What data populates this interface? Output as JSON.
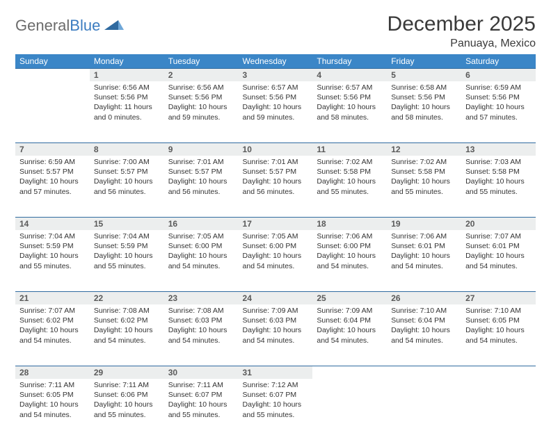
{
  "brand": {
    "name1": "General",
    "name2": "Blue"
  },
  "title": "December 2025",
  "location": "Panuaya, Mexico",
  "colors": {
    "header_bg": "#3b86c7",
    "header_text": "#ffffff",
    "daynum_bg": "#eceeee",
    "daynum_border": "#2f6aa0",
    "text": "#333333",
    "brand_gray": "#6b6b6b",
    "brand_blue": "#3b7cc0"
  },
  "weekdays": [
    "Sunday",
    "Monday",
    "Tuesday",
    "Wednesday",
    "Thursday",
    "Friday",
    "Saturday"
  ],
  "weeks": [
    [
      null,
      {
        "n": "1",
        "sr": "6:56 AM",
        "ss": "5:56 PM",
        "dl": "11 hours and 0 minutes."
      },
      {
        "n": "2",
        "sr": "6:56 AM",
        "ss": "5:56 PM",
        "dl": "10 hours and 59 minutes."
      },
      {
        "n": "3",
        "sr": "6:57 AM",
        "ss": "5:56 PM",
        "dl": "10 hours and 59 minutes."
      },
      {
        "n": "4",
        "sr": "6:57 AM",
        "ss": "5:56 PM",
        "dl": "10 hours and 58 minutes."
      },
      {
        "n": "5",
        "sr": "6:58 AM",
        "ss": "5:56 PM",
        "dl": "10 hours and 58 minutes."
      },
      {
        "n": "6",
        "sr": "6:59 AM",
        "ss": "5:56 PM",
        "dl": "10 hours and 57 minutes."
      }
    ],
    [
      {
        "n": "7",
        "sr": "6:59 AM",
        "ss": "5:57 PM",
        "dl": "10 hours and 57 minutes."
      },
      {
        "n": "8",
        "sr": "7:00 AM",
        "ss": "5:57 PM",
        "dl": "10 hours and 56 minutes."
      },
      {
        "n": "9",
        "sr": "7:01 AM",
        "ss": "5:57 PM",
        "dl": "10 hours and 56 minutes."
      },
      {
        "n": "10",
        "sr": "7:01 AM",
        "ss": "5:57 PM",
        "dl": "10 hours and 56 minutes."
      },
      {
        "n": "11",
        "sr": "7:02 AM",
        "ss": "5:58 PM",
        "dl": "10 hours and 55 minutes."
      },
      {
        "n": "12",
        "sr": "7:02 AM",
        "ss": "5:58 PM",
        "dl": "10 hours and 55 minutes."
      },
      {
        "n": "13",
        "sr": "7:03 AM",
        "ss": "5:58 PM",
        "dl": "10 hours and 55 minutes."
      }
    ],
    [
      {
        "n": "14",
        "sr": "7:04 AM",
        "ss": "5:59 PM",
        "dl": "10 hours and 55 minutes."
      },
      {
        "n": "15",
        "sr": "7:04 AM",
        "ss": "5:59 PM",
        "dl": "10 hours and 55 minutes."
      },
      {
        "n": "16",
        "sr": "7:05 AM",
        "ss": "6:00 PM",
        "dl": "10 hours and 54 minutes."
      },
      {
        "n": "17",
        "sr": "7:05 AM",
        "ss": "6:00 PM",
        "dl": "10 hours and 54 minutes."
      },
      {
        "n": "18",
        "sr": "7:06 AM",
        "ss": "6:00 PM",
        "dl": "10 hours and 54 minutes."
      },
      {
        "n": "19",
        "sr": "7:06 AM",
        "ss": "6:01 PM",
        "dl": "10 hours and 54 minutes."
      },
      {
        "n": "20",
        "sr": "7:07 AM",
        "ss": "6:01 PM",
        "dl": "10 hours and 54 minutes."
      }
    ],
    [
      {
        "n": "21",
        "sr": "7:07 AM",
        "ss": "6:02 PM",
        "dl": "10 hours and 54 minutes."
      },
      {
        "n": "22",
        "sr": "7:08 AM",
        "ss": "6:02 PM",
        "dl": "10 hours and 54 minutes."
      },
      {
        "n": "23",
        "sr": "7:08 AM",
        "ss": "6:03 PM",
        "dl": "10 hours and 54 minutes."
      },
      {
        "n": "24",
        "sr": "7:09 AM",
        "ss": "6:03 PM",
        "dl": "10 hours and 54 minutes."
      },
      {
        "n": "25",
        "sr": "7:09 AM",
        "ss": "6:04 PM",
        "dl": "10 hours and 54 minutes."
      },
      {
        "n": "26",
        "sr": "7:10 AM",
        "ss": "6:04 PM",
        "dl": "10 hours and 54 minutes."
      },
      {
        "n": "27",
        "sr": "7:10 AM",
        "ss": "6:05 PM",
        "dl": "10 hours and 54 minutes."
      }
    ],
    [
      {
        "n": "28",
        "sr": "7:11 AM",
        "ss": "6:05 PM",
        "dl": "10 hours and 54 minutes."
      },
      {
        "n": "29",
        "sr": "7:11 AM",
        "ss": "6:06 PM",
        "dl": "10 hours and 55 minutes."
      },
      {
        "n": "30",
        "sr": "7:11 AM",
        "ss": "6:07 PM",
        "dl": "10 hours and 55 minutes."
      },
      {
        "n": "31",
        "sr": "7:12 AM",
        "ss": "6:07 PM",
        "dl": "10 hours and 55 minutes."
      },
      null,
      null,
      null
    ]
  ],
  "labels": {
    "sunrise": "Sunrise:",
    "sunset": "Sunset:",
    "daylight": "Daylight:"
  }
}
